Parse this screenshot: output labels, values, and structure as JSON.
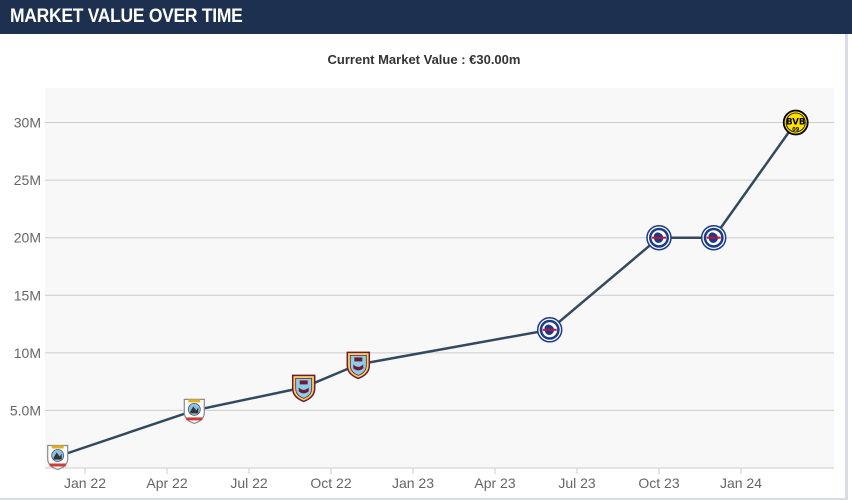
{
  "header": {
    "title": "MARKET VALUE OVER TIME"
  },
  "chart_data": {
    "type": "line",
    "title": "Current Market Value : €30.00m",
    "xlabel": "",
    "ylabel": "",
    "ylim": [
      0,
      33
    ],
    "y_ticks": [
      {
        "value": 5,
        "label": "5.0M"
      },
      {
        "value": 10,
        "label": "10M"
      },
      {
        "value": 15,
        "label": "15M"
      },
      {
        "value": 20,
        "label": "20M"
      },
      {
        "value": 25,
        "label": "25M"
      },
      {
        "value": 30,
        "label": "30M"
      }
    ],
    "x_ticks": [
      "Jan 22",
      "Apr 22",
      "Jul 22",
      "Oct 22",
      "Jan 23",
      "Apr 23",
      "Jul 23",
      "Oct 23",
      "Jan 24"
    ],
    "grid": true,
    "line_color": "#34495e",
    "plot_background": "#f8f8f8",
    "series": [
      {
        "points": [
          {
            "x": "2021-12",
            "y": 1.0,
            "club_icon": "coventry-city-crest-icon"
          },
          {
            "x": "2022-05",
            "y": 5.0,
            "club_icon": "coventry-city-crest-icon"
          },
          {
            "x": "2022-09",
            "y": 7.0,
            "club_icon": "burnley-crest-icon"
          },
          {
            "x": "2022-11",
            "y": 9.0,
            "club_icon": "burnley-crest-icon"
          },
          {
            "x": "2023-06",
            "y": 12.0,
            "club_icon": "chelsea-crest-icon"
          },
          {
            "x": "2023-10",
            "y": 20.0,
            "club_icon": "chelsea-crest-icon"
          },
          {
            "x": "2023-12",
            "y": 20.0,
            "club_icon": "chelsea-crest-icon"
          },
          {
            "x": "2024-03",
            "y": 30.0,
            "club_icon": "borussia-dortmund-crest-icon",
            "club_text": "BVB"
          }
        ]
      }
    ]
  }
}
